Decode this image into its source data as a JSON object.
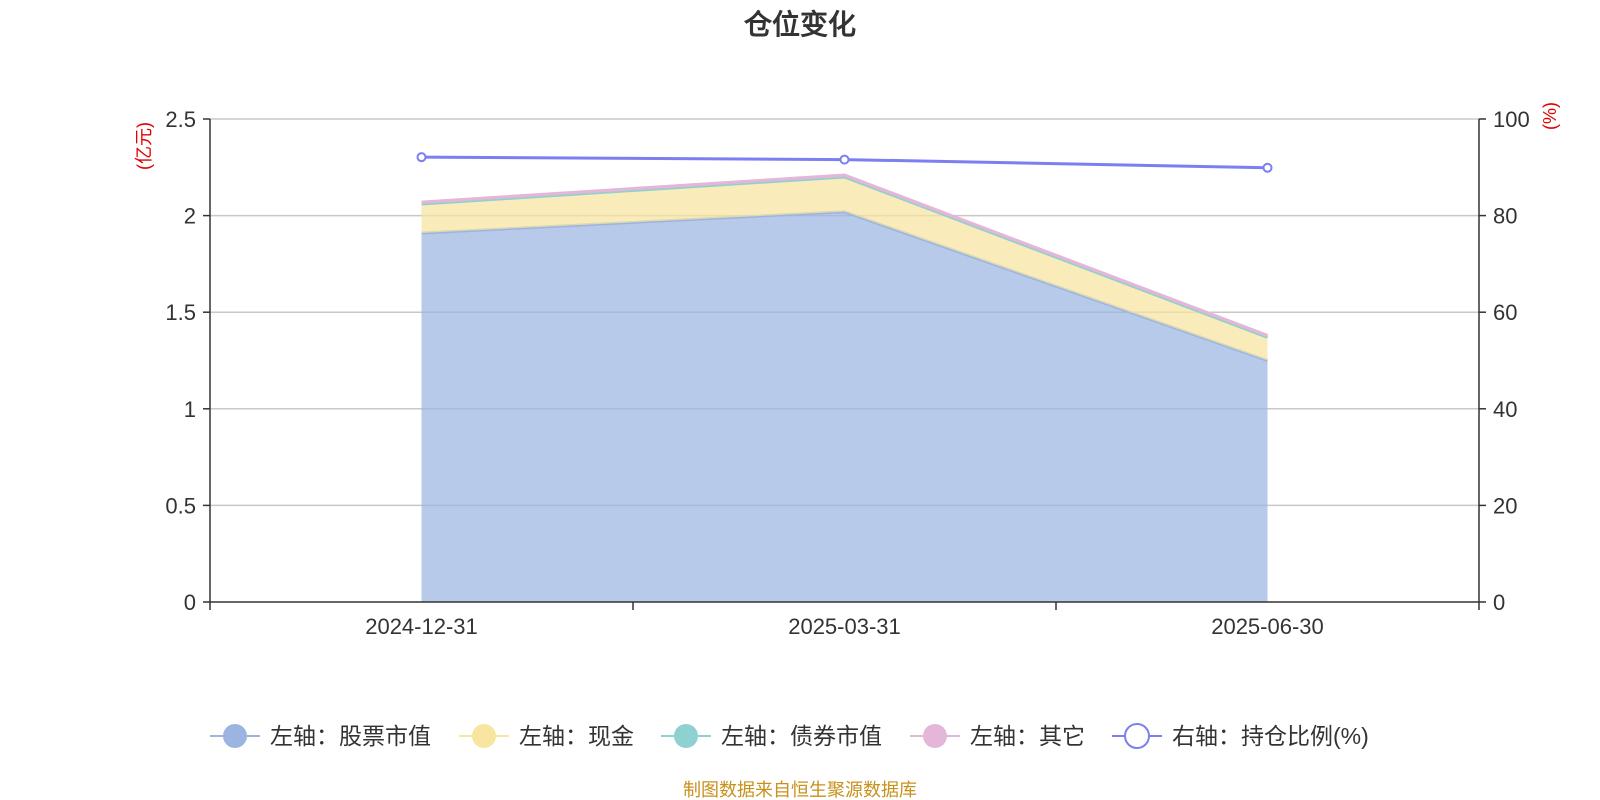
{
  "chart_data": {
    "type": "area",
    "title": "仓位变化",
    "categories": [
      "2024-12-31",
      "2025-03-31",
      "2025-06-30"
    ],
    "left_axis": {
      "unit": "(亿元)",
      "ylim": [
        0,
        2.5
      ],
      "ticks": [
        "0",
        "0.5",
        "1",
        "1.5",
        "2",
        "2.5"
      ]
    },
    "right_axis": {
      "unit": "(%)",
      "ylim": [
        0,
        100
      ],
      "ticks": [
        "0",
        "20",
        "40",
        "60",
        "80",
        "100"
      ]
    },
    "stacked_series": [
      {
        "name": "左轴：股票市值",
        "color": "#9bb5e0",
        "values": [
          1.91,
          2.02,
          1.25
        ]
      },
      {
        "name": "左轴：现金",
        "color": "#f7e5a0",
        "values": [
          0.15,
          0.18,
          0.12
        ]
      },
      {
        "name": "左轴：债券市值",
        "color": "#8fd1d0",
        "values": [
          0,
          0,
          0
        ]
      },
      {
        "name": "左轴：其它",
        "color": "#e4b6d8",
        "values": [
          0.01,
          0.01,
          0.01
        ]
      }
    ],
    "line_series": [
      {
        "name": "右轴：持仓比例(%)",
        "color": "#7b7ff0",
        "axis": "right",
        "values": [
          92.1,
          91.6,
          89.9
        ]
      }
    ],
    "grid": true,
    "legend_position": "bottom"
  },
  "source_text": "制图数据来自恒生聚源数据库"
}
